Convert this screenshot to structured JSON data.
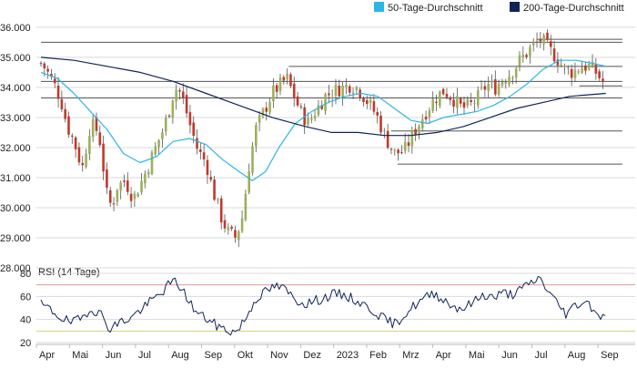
{
  "legend": [
    {
      "label": "50-Tage-Durchschnitt",
      "color": "#2bb7e6"
    },
    {
      "label": "200-Tage-Durchschnitt",
      "color": "#0f2557"
    }
  ],
  "chart_data": [
    {
      "type": "candlestick",
      "y_ticks": [
        "36.000",
        "35.000",
        "34.000",
        "33.000",
        "32.000",
        "31.000",
        "30.000",
        "29.000",
        "28.000"
      ],
      "ylim": [
        28000,
        36300
      ],
      "x_tick_labels": [
        "Apr",
        "Mai",
        "Jun",
        "Jul",
        "Aug",
        "Sep",
        "Okt",
        "Nov",
        "Dez",
        "2023",
        "Feb",
        "Mrz",
        "Apr",
        "Mai",
        "Jun",
        "Jul",
        "Aug",
        "Sep"
      ],
      "close_trend": [
        [
          0,
          34800
        ],
        [
          0.15,
          34600
        ],
        [
          0.4,
          34100
        ],
        [
          0.6,
          33600
        ],
        [
          0.8,
          32700
        ],
        [
          1.0,
          32200
        ],
        [
          1.25,
          31300
        ],
        [
          1.5,
          32800
        ],
        [
          1.75,
          32500
        ],
        [
          2.0,
          30400
        ],
        [
          2.15,
          30000
        ],
        [
          2.3,
          30700
        ],
        [
          2.55,
          30900
        ],
        [
          2.8,
          30300
        ],
        [
          3.1,
          31000
        ],
        [
          3.4,
          31800
        ],
        [
          3.7,
          32600
        ],
        [
          3.9,
          33300
        ],
        [
          4.05,
          34000
        ],
        [
          4.25,
          33800
        ],
        [
          4.5,
          32800
        ],
        [
          4.75,
          31900
        ],
        [
          5.0,
          31500
        ],
        [
          5.2,
          30600
        ],
        [
          5.45,
          29700
        ],
        [
          5.65,
          29200
        ],
        [
          5.9,
          29000
        ],
        [
          6.1,
          29700
        ],
        [
          6.3,
          31400
        ],
        [
          6.5,
          32600
        ],
        [
          6.75,
          33200
        ],
        [
          7.0,
          33800
        ],
        [
          7.25,
          34100
        ],
        [
          7.45,
          34300
        ],
        [
          7.7,
          33600
        ],
        [
          7.9,
          33100
        ],
        [
          8.1,
          32800
        ],
        [
          8.3,
          33200
        ],
        [
          8.6,
          33700
        ],
        [
          8.9,
          33900
        ],
        [
          9.15,
          34000
        ],
        [
          9.4,
          34100
        ],
        [
          9.65,
          33900
        ],
        [
          9.9,
          33500
        ],
        [
          10.15,
          33100
        ],
        [
          10.4,
          32400
        ],
        [
          10.7,
          31800
        ],
        [
          11.0,
          31900
        ],
        [
          11.3,
          32500
        ],
        [
          11.6,
          33100
        ],
        [
          11.9,
          33600
        ],
        [
          12.2,
          33900
        ],
        [
          12.5,
          33600
        ],
        [
          12.75,
          33300
        ],
        [
          13.0,
          33400
        ],
        [
          13.25,
          33700
        ],
        [
          13.5,
          34100
        ],
        [
          13.75,
          34000
        ],
        [
          14.0,
          34300
        ],
        [
          14.25,
          34500
        ],
        [
          14.5,
          34900
        ],
        [
          14.75,
          35200
        ],
        [
          15.0,
          35500
        ],
        [
          15.15,
          35600
        ],
        [
          15.35,
          35300
        ],
        [
          15.6,
          35000
        ],
        [
          15.85,
          34600
        ],
        [
          16.1,
          34500
        ],
        [
          16.35,
          34700
        ],
        [
          16.6,
          34700
        ],
        [
          16.8,
          34500
        ],
        [
          17.0,
          34200
        ],
        [
          17.1,
          34000
        ]
      ],
      "sma50": [
        [
          0,
          34500
        ],
        [
          0.5,
          34300
        ],
        [
          1.0,
          33800
        ],
        [
          1.5,
          33200
        ],
        [
          2.0,
          32600
        ],
        [
          2.5,
          31800
        ],
        [
          3.0,
          31500
        ],
        [
          3.5,
          31700
        ],
        [
          4.0,
          32200
        ],
        [
          4.5,
          32300
        ],
        [
          5.0,
          32100
        ],
        [
          5.5,
          31600
        ],
        [
          6.0,
          31200
        ],
        [
          6.4,
          30900
        ],
        [
          6.8,
          31200
        ],
        [
          7.2,
          32000
        ],
        [
          7.7,
          32800
        ],
        [
          8.2,
          33200
        ],
        [
          8.7,
          33500
        ],
        [
          9.2,
          33700
        ],
        [
          9.7,
          33800
        ],
        [
          10.2,
          33700
        ],
        [
          10.7,
          33300
        ],
        [
          11.2,
          32900
        ],
        [
          11.7,
          32800
        ],
        [
          12.2,
          33000
        ],
        [
          12.7,
          33100
        ],
        [
          13.2,
          33200
        ],
        [
          13.7,
          33400
        ],
        [
          14.2,
          33700
        ],
        [
          14.7,
          34100
        ],
        [
          15.2,
          34600
        ],
        [
          15.7,
          34900
        ],
        [
          16.2,
          34900
        ],
        [
          16.7,
          34800
        ],
        [
          17.1,
          34700
        ]
      ],
      "sma200": [
        [
          0,
          35000
        ],
        [
          1.0,
          34900
        ],
        [
          2.0,
          34700
        ],
        [
          3.0,
          34500
        ],
        [
          4.0,
          34200
        ],
        [
          5.0,
          33800
        ],
        [
          6.0,
          33400
        ],
        [
          7.0,
          33000
        ],
        [
          8.0,
          32700
        ],
        [
          8.8,
          32500
        ],
        [
          9.6,
          32500
        ],
        [
          10.4,
          32400
        ],
        [
          11.2,
          32400
        ],
        [
          12.0,
          32500
        ],
        [
          12.8,
          32700
        ],
        [
          13.6,
          33000
        ],
        [
          14.4,
          33300
        ],
        [
          15.2,
          33500
        ],
        [
          16.0,
          33700
        ],
        [
          17.1,
          33800
        ]
      ],
      "horizontal_levels": [
        {
          "y": 35600,
          "x_from": 15.0,
          "x_to": 17.6
        },
        {
          "y": 35500,
          "x_from": 0.0,
          "x_to": 17.6
        },
        {
          "y": 34700,
          "x_from": 7.5,
          "x_to": 17.6
        },
        {
          "y": 34200,
          "x_from": 0.0,
          "x_to": 17.6
        },
        {
          "y": 34050,
          "x_from": 16.3,
          "x_to": 17.6
        },
        {
          "y": 33650,
          "x_from": 0.0,
          "x_to": 17.6
        },
        {
          "y": 32550,
          "x_from": 10.6,
          "x_to": 17.6
        },
        {
          "y": 31450,
          "x_from": 10.8,
          "x_to": 17.6
        }
      ],
      "colors": {
        "up": "#9bb05a",
        "down": "#c0392b",
        "sma50": "#2bb7e6",
        "sma200": "#0f2557",
        "levels": "#555555",
        "grid": "#d9d9d9"
      }
    },
    {
      "type": "line",
      "title": "RSI (14 Tage)",
      "y_ticks": [
        "80",
        "60",
        "40",
        "20"
      ],
      "ylim": [
        20,
        80
      ],
      "reference_lines": [
        {
          "y": 70,
          "color": "#e79a9a"
        },
        {
          "y": 30,
          "color": "#cfd27a"
        }
      ],
      "rsi_trend": [
        [
          0,
          53
        ],
        [
          0.3,
          48
        ],
        [
          0.6,
          42
        ],
        [
          0.9,
          37
        ],
        [
          1.2,
          40
        ],
        [
          1.5,
          50
        ],
        [
          1.8,
          45
        ],
        [
          2.1,
          32
        ],
        [
          2.4,
          38
        ],
        [
          2.7,
          41
        ],
        [
          3.0,
          48
        ],
        [
          3.3,
          55
        ],
        [
          3.6,
          62
        ],
        [
          3.9,
          71
        ],
        [
          4.1,
          73
        ],
        [
          4.4,
          60
        ],
        [
          4.7,
          46
        ],
        [
          5.0,
          41
        ],
        [
          5.3,
          35
        ],
        [
          5.6,
          31
        ],
        [
          5.9,
          29
        ],
        [
          6.2,
          41
        ],
        [
          6.5,
          58
        ],
        [
          6.8,
          64
        ],
        [
          7.1,
          69
        ],
        [
          7.4,
          66
        ],
        [
          7.7,
          57
        ],
        [
          8.0,
          54
        ],
        [
          8.3,
          56
        ],
        [
          8.6,
          59
        ],
        [
          8.9,
          62
        ],
        [
          9.2,
          61
        ],
        [
          9.5,
          57
        ],
        [
          9.8,
          52
        ],
        [
          10.1,
          47
        ],
        [
          10.4,
          40
        ],
        [
          10.7,
          36
        ],
        [
          11.0,
          44
        ],
        [
          11.3,
          52
        ],
        [
          11.6,
          58
        ],
        [
          11.9,
          63
        ],
        [
          12.2,
          57
        ],
        [
          12.5,
          51
        ],
        [
          12.8,
          50
        ],
        [
          13.1,
          55
        ],
        [
          13.4,
          62
        ],
        [
          13.7,
          59
        ],
        [
          14.0,
          63
        ],
        [
          14.3,
          62
        ],
        [
          14.6,
          67
        ],
        [
          14.9,
          73
        ],
        [
          15.1,
          76
        ],
        [
          15.35,
          65
        ],
        [
          15.6,
          55
        ],
        [
          15.9,
          45
        ],
        [
          16.2,
          53
        ],
        [
          16.5,
          56
        ],
        [
          16.8,
          47
        ],
        [
          17.1,
          40
        ]
      ],
      "colors": {
        "line": "#0f2557",
        "grid": "#d9d9d9"
      }
    }
  ]
}
